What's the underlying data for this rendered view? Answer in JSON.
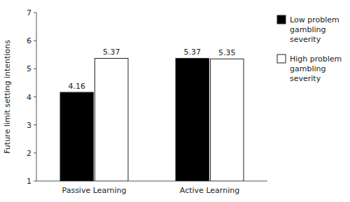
{
  "chart_data": {
    "type": "bar",
    "categories": [
      "Passive Learning",
      "Active Learning"
    ],
    "series": [
      {
        "name": "Low problem\ngambling\nseverity",
        "color": "#000000",
        "values": [
          4.16,
          5.37
        ]
      },
      {
        "name": "High problem\ngambling\nseverity",
        "color": "#ffffff",
        "values": [
          5.37,
          5.35
        ]
      }
    ],
    "ylabel": "Future limit setting intentions",
    "ylim": [
      1,
      7
    ],
    "yticks": [
      1,
      2,
      3,
      4,
      5,
      6,
      7
    ],
    "data_labels": true,
    "grid": false,
    "legend": "right"
  }
}
